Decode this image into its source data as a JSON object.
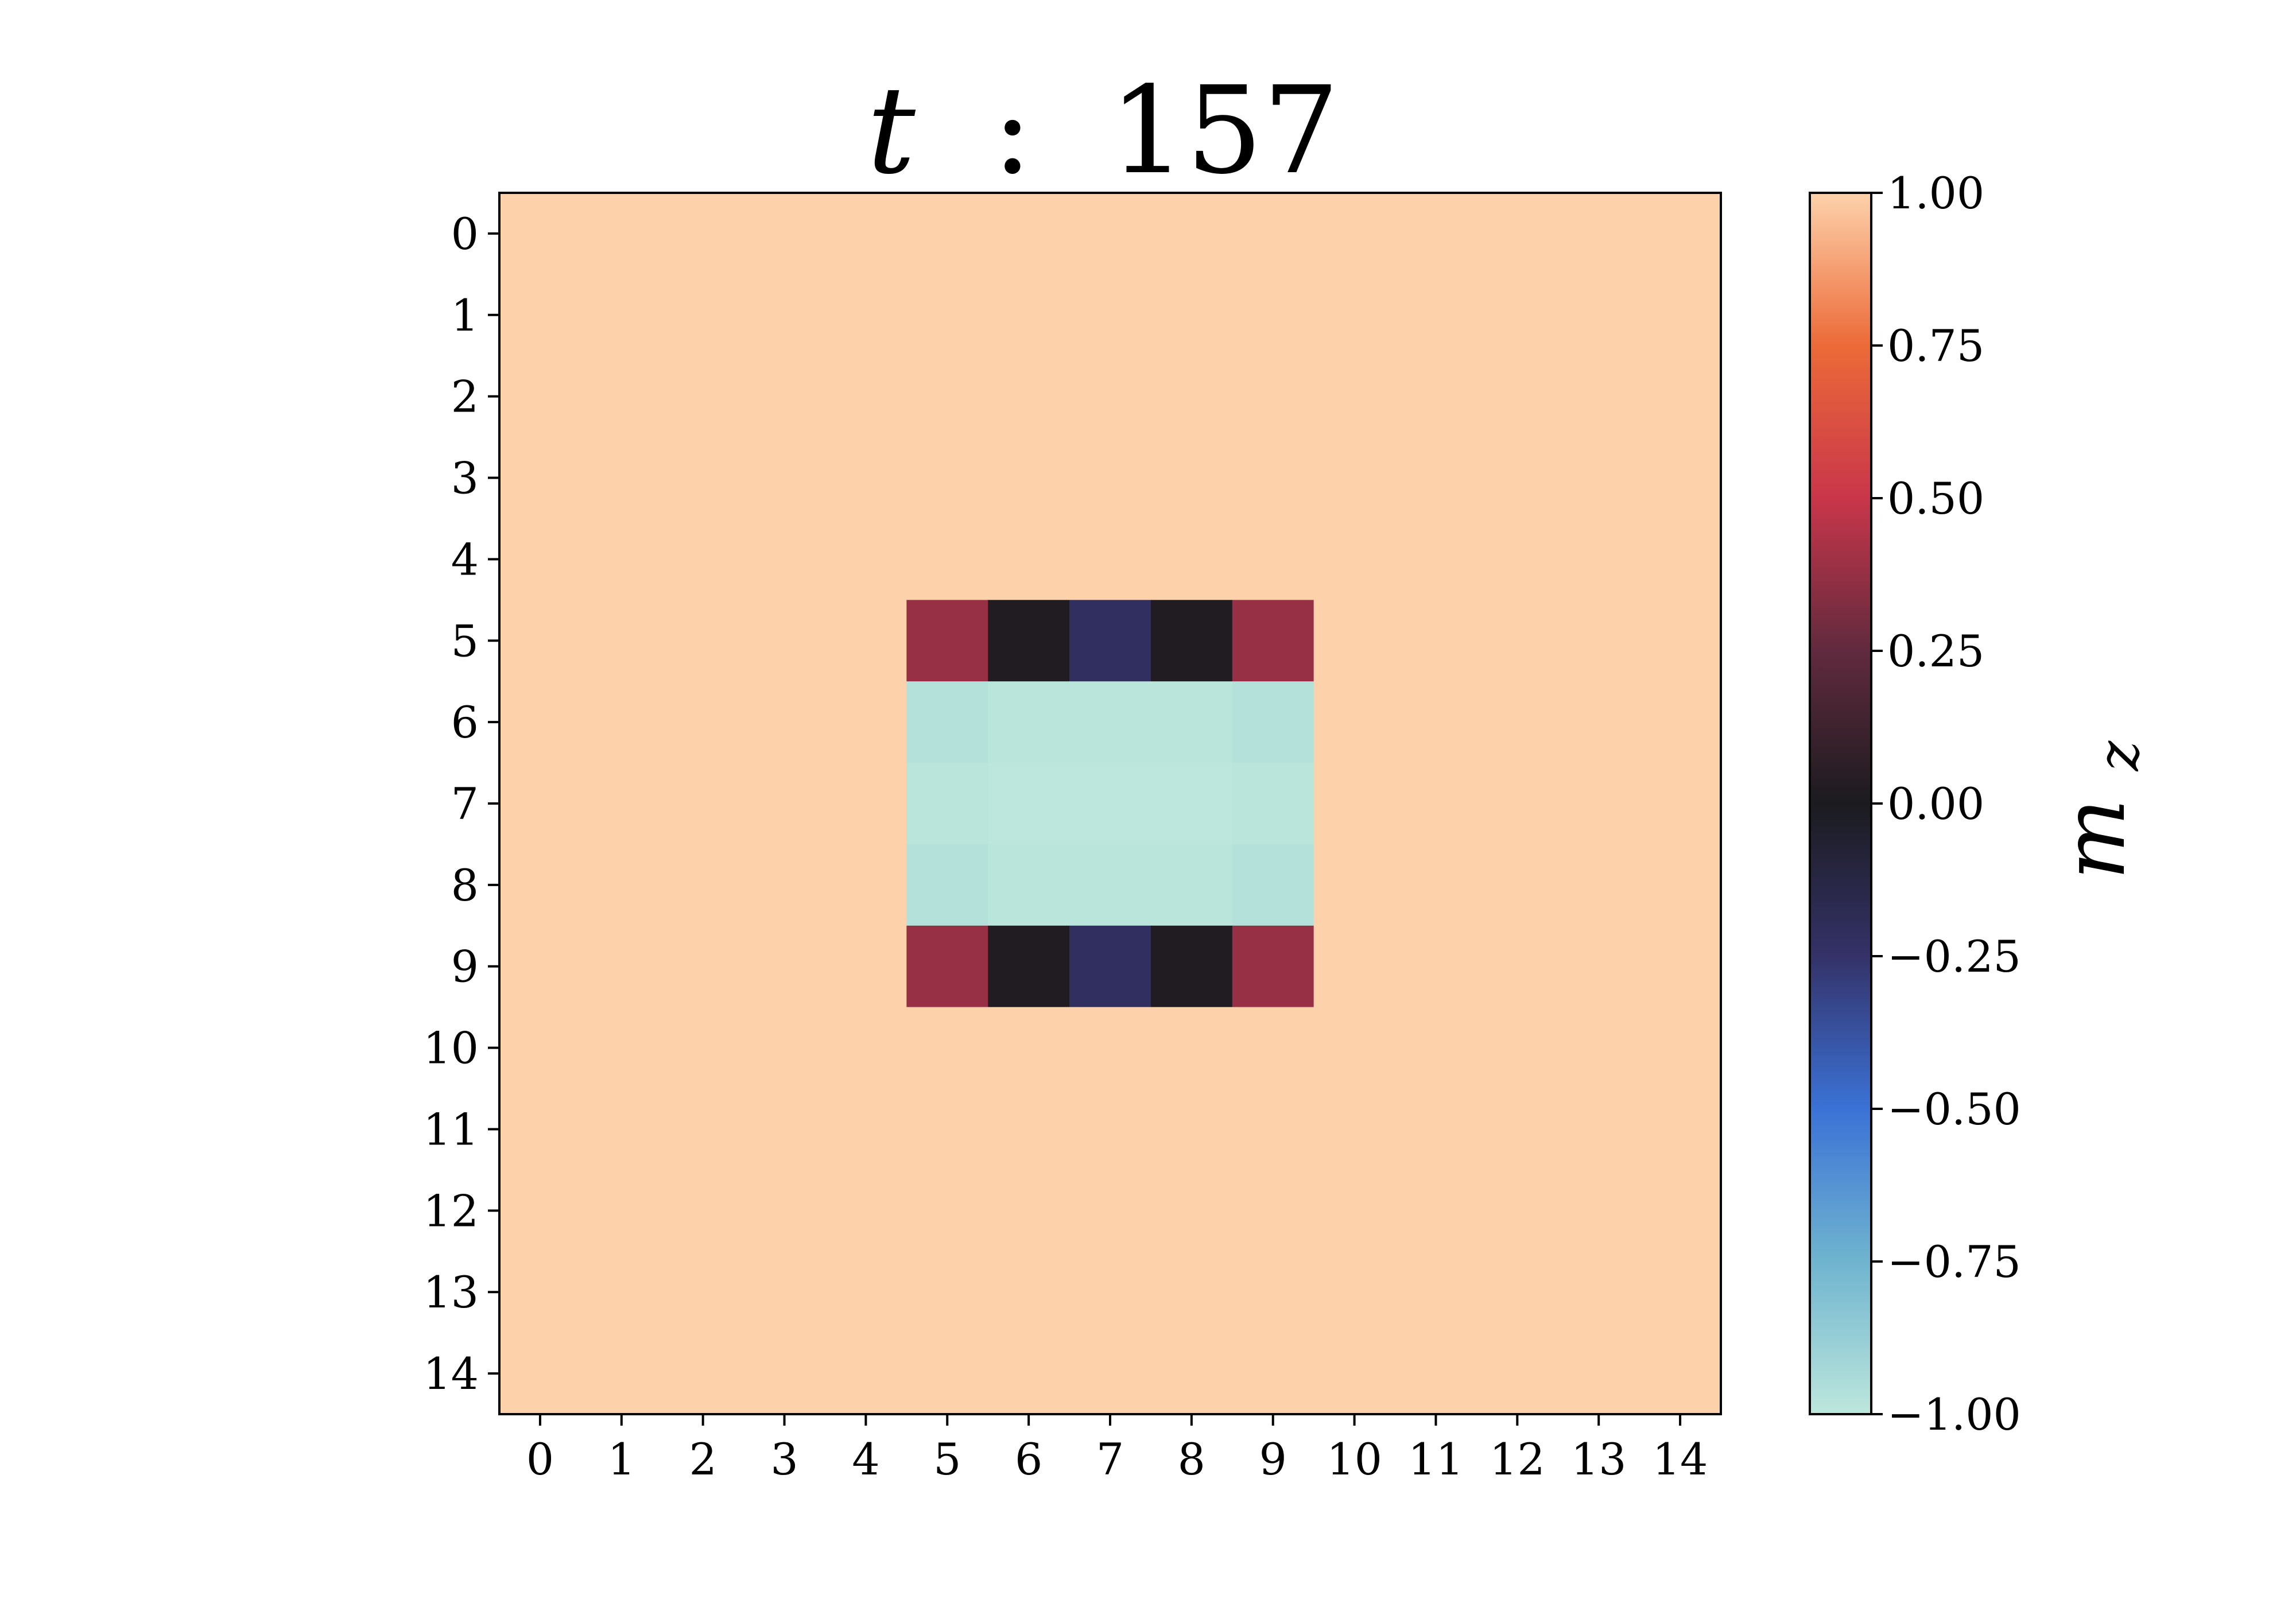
{
  "chart_data": {
    "type": "heatmap",
    "title": "t : 157",
    "title_parts": {
      "var": "t",
      "sep": " : ",
      "value": "157"
    },
    "colorbar_label": "m_z",
    "colorbar_label_parts": {
      "base": "m",
      "sub": "z"
    },
    "colorbar_range": [
      -1.0,
      1.0
    ],
    "colorbar_ticks": [
      1.0,
      0.75,
      0.5,
      0.25,
      0.0,
      -0.25,
      -0.5,
      -0.75,
      -1.0
    ],
    "colorbar_tick_labels": [
      "1.00",
      "0.75",
      "0.50",
      "0.25",
      "0.00",
      "−0.25",
      "−0.50",
      "−0.75",
      "−1.00"
    ],
    "colormap": "icefire",
    "colormap_stops": [
      {
        "v": -1.0,
        "color": "#bde7dc"
      },
      {
        "v": -0.75,
        "color": "#6fb4cf"
      },
      {
        "v": -0.5,
        "color": "#3b72d6"
      },
      {
        "v": -0.25,
        "color": "#343268"
      },
      {
        "v": 0.0,
        "color": "#1b1b1f"
      },
      {
        "v": 0.25,
        "color": "#612a3e"
      },
      {
        "v": 0.5,
        "color": "#c9364a"
      },
      {
        "v": 0.75,
        "color": "#ec6a38"
      },
      {
        "v": 1.0,
        "color": "#fdd2ab"
      }
    ],
    "x_ticks": [
      0,
      1,
      2,
      3,
      4,
      5,
      6,
      7,
      8,
      9,
      10,
      11,
      12,
      13,
      14
    ],
    "y_ticks": [
      0,
      1,
      2,
      3,
      4,
      5,
      6,
      7,
      8,
      9,
      10,
      11,
      12,
      13,
      14
    ],
    "grid_size": 15,
    "grid": false,
    "default_value": 1.0,
    "cells": [
      {
        "row": 5,
        "col": 5,
        "value": 0.38
      },
      {
        "row": 5,
        "col": 6,
        "value": 0.02
      },
      {
        "row": 5,
        "col": 7,
        "value": -0.22
      },
      {
        "row": 5,
        "col": 8,
        "value": 0.02
      },
      {
        "row": 5,
        "col": 9,
        "value": 0.38
      },
      {
        "row": 6,
        "col": 5,
        "value": -0.97
      },
      {
        "row": 6,
        "col": 6,
        "value": -0.99
      },
      {
        "row": 6,
        "col": 7,
        "value": -0.99
      },
      {
        "row": 6,
        "col": 8,
        "value": -0.99
      },
      {
        "row": 6,
        "col": 9,
        "value": -0.97
      },
      {
        "row": 7,
        "col": 5,
        "value": -0.99
      },
      {
        "row": 7,
        "col": 6,
        "value": -1.0
      },
      {
        "row": 7,
        "col": 7,
        "value": -1.0
      },
      {
        "row": 7,
        "col": 8,
        "value": -1.0
      },
      {
        "row": 7,
        "col": 9,
        "value": -0.99
      },
      {
        "row": 8,
        "col": 5,
        "value": -0.97
      },
      {
        "row": 8,
        "col": 6,
        "value": -0.99
      },
      {
        "row": 8,
        "col": 7,
        "value": -0.99
      },
      {
        "row": 8,
        "col": 8,
        "value": -0.99
      },
      {
        "row": 8,
        "col": 9,
        "value": -0.97
      },
      {
        "row": 9,
        "col": 5,
        "value": 0.38
      },
      {
        "row": 9,
        "col": 6,
        "value": 0.02
      },
      {
        "row": 9,
        "col": 7,
        "value": -0.22
      },
      {
        "row": 9,
        "col": 8,
        "value": 0.02
      },
      {
        "row": 9,
        "col": 9,
        "value": 0.38
      }
    ]
  }
}
